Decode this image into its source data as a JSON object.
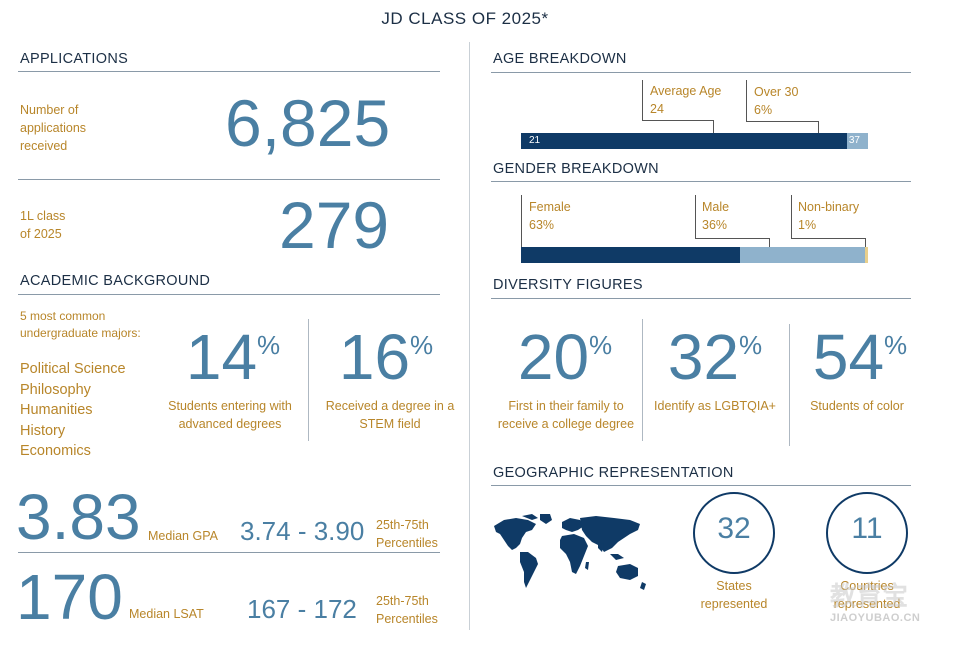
{
  "title": "JD CLASS OF 2025*",
  "applications": {
    "heading": "APPLICATIONS",
    "received_label": "Number of applications received",
    "received_label_lines": [
      "Number of",
      "applications",
      "received"
    ],
    "received_value": "6,825",
    "class_label_lines": [
      "1L class",
      "of 2025"
    ],
    "class_value": "279"
  },
  "academic": {
    "heading": "ACADEMIC BACKGROUND",
    "majors_intro_lines": [
      "5 most common",
      "undergraduate majors:"
    ],
    "majors": [
      "Political Science",
      "Philosophy",
      "Humanities",
      "History",
      "Economics"
    ],
    "stat1": {
      "value": "14",
      "unit": "%",
      "label_lines": [
        "Students entering with",
        "advanced degrees"
      ]
    },
    "stat2": {
      "value": "16",
      "unit": "%",
      "label_lines": [
        "Received a degree in a",
        "STEM field"
      ]
    }
  },
  "scores": {
    "gpa_median": "3.83",
    "gpa_label": "Median GPA",
    "gpa_range": "3.74 - 3.90",
    "gpa_pct_lines": [
      "25th-75th",
      "Percentiles"
    ],
    "lsat_median": "170",
    "lsat_label": "Median LSAT",
    "lsat_range": "167 - 172",
    "lsat_pct_lines": [
      "25th-75th",
      "Percentiles"
    ]
  },
  "age": {
    "heading": "AGE BREAKDOWN",
    "avg_label": "Average Age",
    "avg_value": "24",
    "over30_label": "Over 30",
    "over30_value": "6%",
    "min": "21",
    "max": "37",
    "over30_fraction": 0.06
  },
  "gender": {
    "heading": "GENDER BREAKDOWN",
    "female_label": "Female",
    "female_value": "63%",
    "male_label": "Male",
    "male_value": "36%",
    "nonbinary_label": "Non-binary",
    "nonbinary_value": "1%",
    "fractions": {
      "female": 0.63,
      "male": 0.36,
      "nonbinary": 0.01
    }
  },
  "diversity": {
    "heading": "DIVERSITY FIGURES",
    "items": [
      {
        "value": "20",
        "unit": "%",
        "label_lines": [
          "First in their family to",
          "receive a college degree"
        ]
      },
      {
        "value": "32",
        "unit": "%",
        "label_lines": [
          "Identify as LGBTQIA+"
        ]
      },
      {
        "value": "54",
        "unit": "%",
        "label_lines": [
          "Students of color"
        ]
      }
    ]
  },
  "geo": {
    "heading": "GEOGRAPHIC REPRESENTATION",
    "states_value": "32",
    "states_label_lines": [
      "States",
      "represented"
    ],
    "countries_value": "11",
    "countries_label_lines": [
      "Countries",
      "represented"
    ]
  },
  "watermark": {
    "line1": "教育宝",
    "line2": "JIAOYUBAO.CN"
  },
  "colors": {
    "navy": "#0f3a66",
    "steel": "#4a7fa3",
    "light_steel": "#8fb2cc",
    "gold": "#b8862a"
  }
}
